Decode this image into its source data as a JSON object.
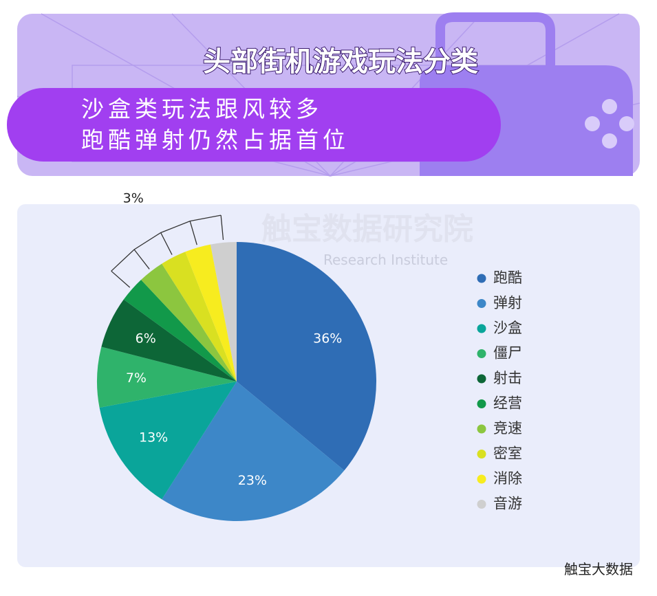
{
  "header": {
    "title": "头部街机游戏玩法分类",
    "subtitle_lines": [
      "沙盒类玩法跟风较多",
      "跑酷弹射仍然占据首位"
    ]
  },
  "watermark": {
    "name": "触宝数据研究院",
    "english": "Research Institute"
  },
  "footer": {
    "account": "触宝大数据"
  },
  "chart_data": {
    "type": "pie",
    "categories": [
      "跑酷",
      "弹射",
      "沙盒",
      "僵尸",
      "射击",
      "经营",
      "竞速",
      "密室",
      "消除",
      "音游"
    ],
    "values": [
      36,
      23,
      13,
      7,
      6,
      3,
      3,
      3,
      3,
      3
    ],
    "value_labels": [
      "36%",
      "23%",
      "13%",
      "7%",
      "6%",
      null,
      null,
      null,
      null,
      null
    ],
    "bracket_label": "3%",
    "colors": [
      "#2f6db5",
      "#3d87c8",
      "#0aa59a",
      "#2fb36b",
      "#0d6637",
      "#12994a",
      "#8cc63f",
      "#d9e021",
      "#f7ec1f",
      "#cfcfcf"
    ],
    "legend": "right"
  }
}
